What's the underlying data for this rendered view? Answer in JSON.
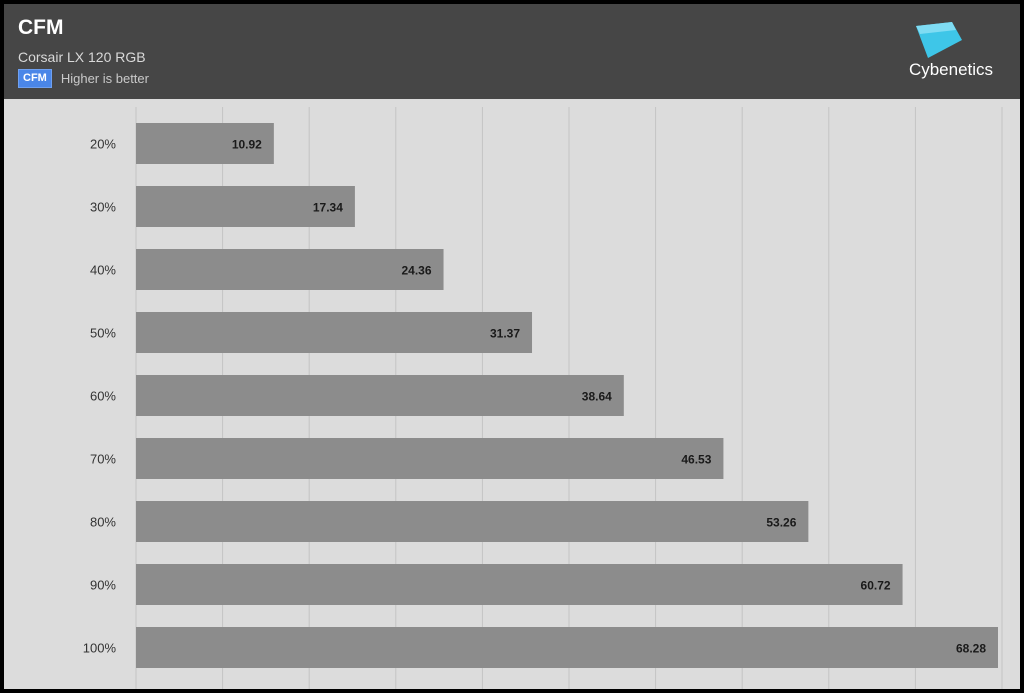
{
  "header": {
    "title": "CFM",
    "subtitle": "Corsair LX 120 RGB",
    "legend_label": "CFM",
    "legend_note": "Higher is better",
    "logo_text": "Cybenetics"
  },
  "colors": {
    "header_bg": "#464646",
    "plot_bg": "#dcdcdc",
    "bar": "#8c8c8c",
    "legend_swatch": "#4a86e8",
    "logo_accent": "#3ec6e8"
  },
  "chart_data": {
    "type": "bar",
    "orientation": "horizontal",
    "title": "CFM",
    "subtitle": "Corsair LX 120 RGB",
    "categories": [
      "20%",
      "30%",
      "40%",
      "50%",
      "60%",
      "70%",
      "80%",
      "90%",
      "100%"
    ],
    "values": [
      10.92,
      17.34,
      24.36,
      31.37,
      38.64,
      46.53,
      53.26,
      60.72,
      68.28
    ],
    "value_labels": [
      "10.92",
      "17.34",
      "24.36",
      "31.37",
      "38.64",
      "46.53",
      "53.26",
      "60.72",
      "68.28"
    ],
    "xlim": [
      0,
      68.28
    ],
    "grid": true,
    "legend": "top-left"
  }
}
